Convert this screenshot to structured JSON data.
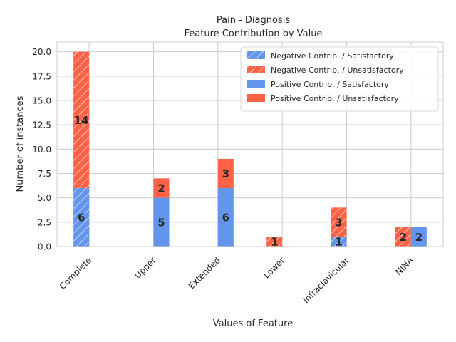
{
  "chart_data": {
    "type": "bar",
    "title": "Pain - Diagnosis",
    "subtitle": "Feature Contribution by Value",
    "xlabel": "Values of Feature",
    "ylabel": "Number of instances",
    "ylim": [
      0,
      21
    ],
    "yticks": [
      "0.0",
      "2.5",
      "5.0",
      "7.5",
      "10.0",
      "12.5",
      "15.0",
      "17.5",
      "20.0"
    ],
    "categories": [
      "Complete",
      "Upper",
      "Extended",
      "Lower",
      "Infraclavicular",
      "NINA"
    ],
    "stacked": true,
    "grid": true,
    "legend_position": "top-right",
    "series": [
      {
        "name": "Negative Contrib. / Satisfactory",
        "group": "negative",
        "hatched": true,
        "color": "#6495ED",
        "values": [
          6,
          0,
          0,
          0,
          1,
          0
        ]
      },
      {
        "name": "Negative Contrib. / Unsatisfactory",
        "group": "negative",
        "hatched": true,
        "color": "#FF6347",
        "values": [
          14,
          0,
          0,
          1,
          3,
          2
        ]
      },
      {
        "name": "Positive Contrib. / Satisfactory",
        "group": "positive",
        "hatched": false,
        "color": "#6495ED",
        "values": [
          0,
          5,
          6,
          0,
          0,
          2
        ]
      },
      {
        "name": "Positive Contrib. / Unsatisfactory",
        "group": "positive",
        "hatched": false,
        "color": "#FF6347",
        "values": [
          0,
          2,
          3,
          0,
          0,
          0
        ]
      }
    ]
  }
}
